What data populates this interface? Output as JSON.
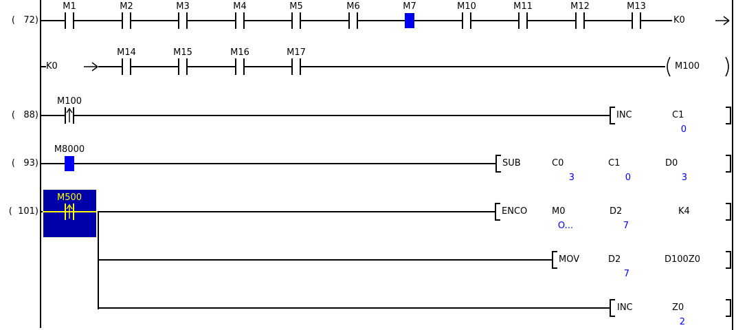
{
  "app": "plc-ladder-logic-monitor",
  "colors": {
    "background": "#ffffff",
    "line": "#000000",
    "monitor_value": "#0000ff",
    "energized_fill": "#0000f0",
    "cursor_fill": "#0000a8",
    "cursor_accent": "#ffff00",
    "cursor_border": "#ffffc8"
  },
  "rungs": [
    {
      "step": "(   72)",
      "contacts": [
        {
          "label": "M1"
        },
        {
          "label": "M2"
        },
        {
          "label": "M3"
        },
        {
          "label": "M4"
        },
        {
          "label": "M5"
        },
        {
          "label": "M6"
        },
        {
          "label": "M7",
          "energized": true
        },
        {
          "label": "M10"
        },
        {
          "label": "M11"
        },
        {
          "label": "M12"
        },
        {
          "label": "M13"
        }
      ],
      "jump_out": {
        "label": "K0"
      }
    },
    {
      "jump_in": {
        "label": "K0"
      },
      "contacts": [
        {
          "label": "M14"
        },
        {
          "label": "M15"
        },
        {
          "label": "M16"
        },
        {
          "label": "M17"
        }
      ],
      "coil": {
        "label": "M100"
      }
    },
    {
      "step": "(   88)",
      "contacts": [
        {
          "label": "M100",
          "edge": "rising"
        }
      ],
      "instruction": {
        "mnemonic": "INC",
        "operands": [
          {
            "device": "C1",
            "value": "0"
          }
        ]
      }
    },
    {
      "step": "(   93)",
      "contacts": [
        {
          "label": "M8000",
          "energized": true
        }
      ],
      "instruction": {
        "mnemonic": "SUB",
        "operands": [
          {
            "device": "C0",
            "value": "3"
          },
          {
            "device": "C1",
            "value": "0"
          },
          {
            "device": "D0",
            "value": "3"
          }
        ]
      }
    },
    {
      "step": "(  101)",
      "contacts": [
        {
          "label": "M500",
          "edge": "rising",
          "selected": true
        }
      ],
      "instruction": {
        "mnemonic": "ENCO",
        "operands": [
          {
            "device": "M0",
            "value": "O..."
          },
          {
            "device": "D2",
            "value": "7"
          },
          {
            "device": "K4"
          }
        ]
      }
    },
    {
      "branch": true,
      "instruction": {
        "mnemonic": "MOV",
        "operands": [
          {
            "device": "D2",
            "value": "7"
          },
          {
            "device": "D100Z0"
          }
        ]
      }
    },
    {
      "branch": true,
      "instruction": {
        "mnemonic": "INC",
        "operands": [
          {
            "device": "Z0",
            "value": "2"
          }
        ]
      }
    }
  ]
}
